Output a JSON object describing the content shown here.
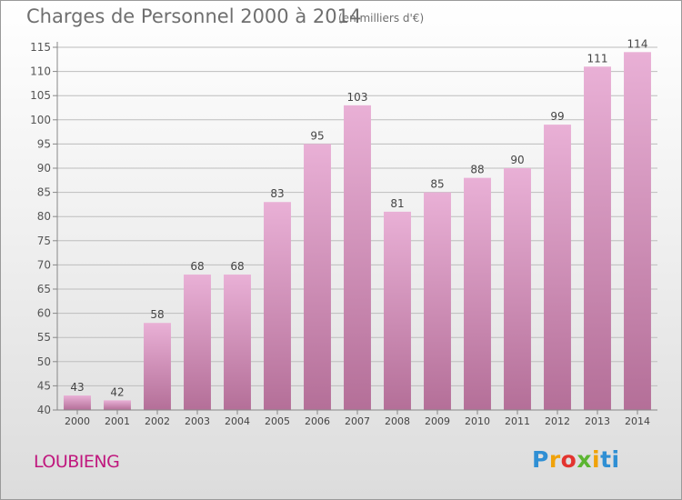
{
  "header": {
    "title": "Charges de Personnel 2000 à 2014",
    "subtitle": "(en milliers d'€)"
  },
  "footer": {
    "place": "LOUBIENG",
    "logo": "Proxiti"
  },
  "colors": {
    "bar_top": "#e9b0d6",
    "bar_bottom": "#b46f98",
    "place_text": "#c0187e"
  },
  "chart_data": {
    "type": "bar",
    "categories": [
      "2000",
      "2001",
      "2002",
      "2003",
      "2004",
      "2005",
      "2006",
      "2007",
      "2008",
      "2009",
      "2010",
      "2011",
      "2012",
      "2013",
      "2014"
    ],
    "values": [
      43,
      42,
      58,
      68,
      68,
      83,
      95,
      103,
      81,
      85,
      88,
      90,
      99,
      111,
      114
    ],
    "ylim": [
      40,
      115
    ],
    "yticks": [
      40,
      45,
      50,
      55,
      60,
      65,
      70,
      75,
      80,
      85,
      90,
      95,
      100,
      105,
      110,
      115
    ],
    "grid": true
  }
}
